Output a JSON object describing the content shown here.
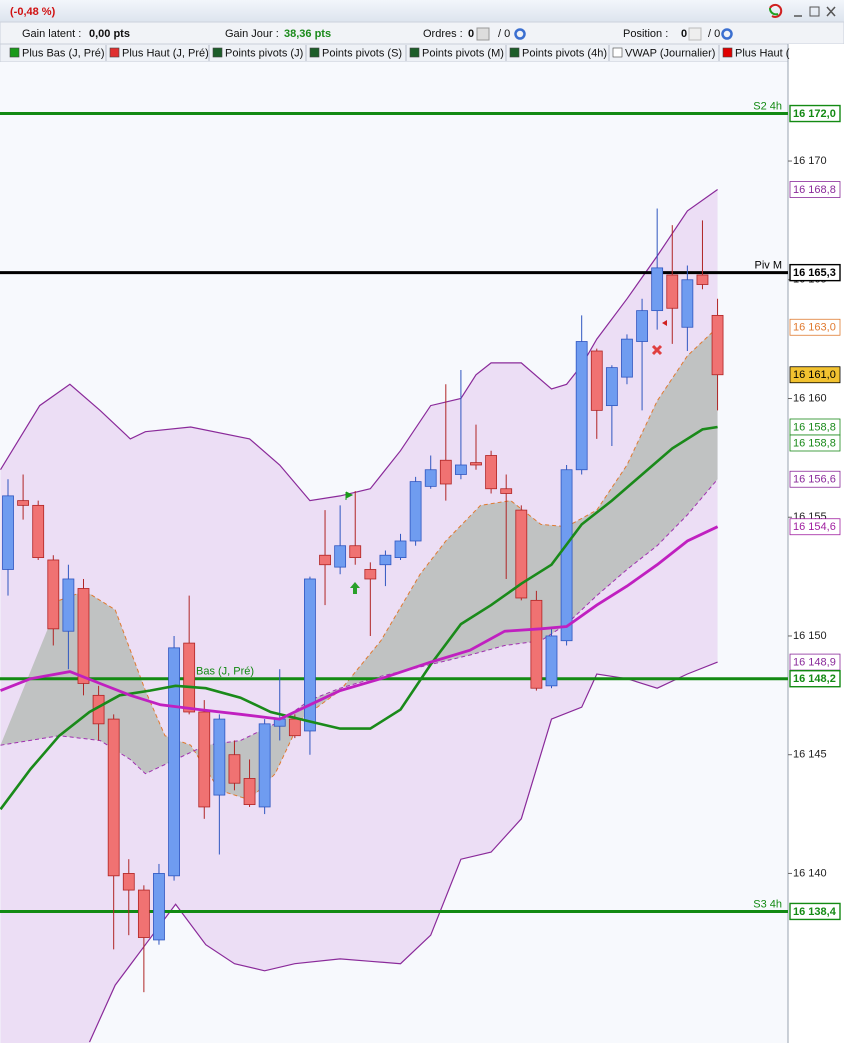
{
  "header": {
    "change": "(-0,48 %)"
  },
  "stats": {
    "gain_latent_label": "Gain latent :",
    "gain_latent": "0,00 pts",
    "gain_jour_label": "Gain Jour :",
    "gain_jour": "38,36 pts",
    "ordres_label": "Ordres :",
    "ordres": "0",
    "ordres_total": "/ 0",
    "position_label": "Position :",
    "position": "0",
    "position_total": "/ 0"
  },
  "indicators": [
    {
      "name": "Plus Bas (J, Pré)",
      "color": "#1a9a1a"
    },
    {
      "name": "Plus Haut (J, Pré)",
      "color": "#e03030"
    },
    {
      "name": "Points pivots (J)",
      "color": "#1d5e2a"
    },
    {
      "name": "Points pivots (S)",
      "color": "#1d5e2a"
    },
    {
      "name": "Points pivots (M)",
      "color": "#1d5e2a"
    },
    {
      "name": "Points pivots (4h)",
      "color": "#1d5e2a"
    },
    {
      "name": "VWAP (Journalier)",
      "color": "#ffffff"
    },
    {
      "name": "Plus Haut (",
      "color": "#e00000"
    }
  ],
  "chart_data": {
    "type": "candlestick",
    "xlim": [
      -0.53,
      51.6
    ],
    "ylim": [
      16132.86,
      16174.17
    ],
    "yticks": [
      {
        "value": 16140,
        "label": "16 140"
      },
      {
        "value": 16145,
        "label": "16 145"
      },
      {
        "value": 16150,
        "label": "16 150"
      },
      {
        "value": 16155,
        "label": "16 155"
      },
      {
        "value": 16160,
        "label": "16 160"
      },
      {
        "value": 16165,
        "label": "16 165"
      },
      {
        "value": 16170,
        "label": "16 170"
      }
    ],
    "up_color": "#6f9cf0",
    "down_color": "#f07272",
    "open": [
      16152.8,
      16155.7,
      16155.5,
      16153.2,
      16150.2,
      16152.0,
      16147.5,
      16146.5,
      16140.0,
      16139.3,
      16137.2,
      16139.9,
      16149.7,
      16146.8,
      16143.3,
      16145.0,
      16144.0,
      16142.8,
      16146.2,
      16146.5,
      16146.0,
      16153.4,
      16152.9,
      16153.8,
      16152.8,
      16153.0,
      16153.3,
      16154.0,
      16156.3,
      16157.4,
      16156.8,
      16157.3,
      16157.6,
      16156.2,
      16155.3,
      16151.5,
      16147.9,
      16149.8,
      16157.0,
      16162.0,
      16159.7,
      16160.9,
      16162.4,
      16163.7,
      16165.2,
      16163.0,
      16165.2,
      16163.5
    ],
    "high": [
      16156.6,
      16156.8,
      16155.7,
      16153.4,
      16153.0,
      16152.4,
      16147.9,
      16146.7,
      16140.6,
      16139.5,
      16140.4,
      16150.0,
      16151.7,
      16147.3,
      16146.7,
      16145.6,
      16144.8,
      16146.5,
      16148.6,
      16146.7,
      16152.5,
      16155.3,
      16155.5,
      16156.1,
      16153.1,
      16153.6,
      16154.3,
      16156.7,
      16157.6,
      16160.6,
      16161.2,
      16158.9,
      16157.8,
      16156.8,
      16155.5,
      16151.9,
      16150.3,
      16157.2,
      16163.5,
      16162.1,
      16161.4,
      16162.7,
      16164.2,
      16168.0,
      16167.3,
      16165.6,
      16167.5,
      16164.2
    ],
    "low": [
      16151.7,
      16154.9,
      16153.2,
      16149.6,
      16148.6,
      16147.5,
      16145.6,
      16136.8,
      16137.4,
      16135.0,
      16137.0,
      16139.7,
      16146.7,
      16142.3,
      16140.8,
      16143.5,
      16142.8,
      16142.5,
      16145.6,
      16145.7,
      16145.0,
      16151.3,
      16152.6,
      16153.0,
      16150.0,
      16152.1,
      16153.2,
      16153.8,
      16156.2,
      16155.7,
      16156.6,
      16157.0,
      16156.0,
      16152.4,
      16151.5,
      16147.7,
      16147.8,
      16149.6,
      16156.8,
      16158.3,
      16158.0,
      16160.6,
      16159.5,
      16162.9,
      16162.3,
      16162.0,
      16164.6,
      16159.5
    ],
    "close": [
      16155.9,
      16155.5,
      16153.3,
      16150.3,
      16152.4,
      16148.0,
      16146.3,
      16139.9,
      16139.3,
      16137.3,
      16140.0,
      16149.5,
      16146.8,
      16142.8,
      16146.5,
      16143.8,
      16142.9,
      16146.3,
      16146.5,
      16145.8,
      16152.4,
      16153.0,
      16153.8,
      16153.3,
      16152.4,
      16153.4,
      16154.0,
      16156.5,
      16157.0,
      16156.4,
      16157.2,
      16157.2,
      16156.2,
      16156.0,
      16151.6,
      16147.8,
      16150.0,
      16157.0,
      16162.4,
      16159.5,
      16161.3,
      16162.5,
      16163.7,
      16165.5,
      16163.8,
      16165.0,
      16164.8,
      16161.0
    ],
    "lines": [
      {
        "color": "#8a2a9a",
        "width": 1.2,
        "fill": "#ead9f3",
        "x": [
          -0.5,
          2.1,
          4.1,
          6.1,
          8.1,
          9.1,
          12.1,
          16,
          18,
          20,
          22,
          24,
          26,
          28,
          30,
          31,
          32,
          34,
          36,
          37,
          38,
          39,
          41,
          43,
          45,
          47
        ],
        "values": [
          16157.0,
          16159.7,
          16160.6,
          16159.5,
          16158.3,
          16158.6,
          16158.8,
          16158.3,
          16157.2,
          16155.7,
          16155.9,
          16156.2,
          16157.8,
          16159.7,
          16160.0,
          16161.0,
          16161.5,
          16161.5,
          16160.4,
          16160.6,
          16161.4,
          16162.5,
          16164.2,
          16166.0,
          16167.9,
          16168.8
        ]
      },
      {
        "color": "#8a2a9a",
        "width": 1.2,
        "x": [
          5.4,
          7.1,
          9.1,
          11.1,
          13.1,
          15,
          17,
          19,
          22,
          24,
          26,
          28,
          30,
          32,
          34,
          36,
          38,
          39,
          41,
          43,
          45,
          47
        ],
        "values": [
          16132.9,
          16135.3,
          16137.0,
          16138.7,
          16137.0,
          16136.2,
          16135.9,
          16136.2,
          16136.4,
          16136.3,
          16136.2,
          16137.4,
          16140.6,
          16140.9,
          16142.3,
          16146.5,
          16147.0,
          16148.4,
          16148.2,
          16147.8,
          16148.4,
          16148.9
        ]
      },
      {
        "color": "#e07a30",
        "width": 1,
        "dash": true,
        "fill": "#b9bdb9",
        "x": [
          3.4,
          5.1,
          7.1,
          8.1,
          9.1,
          10.4,
          12.1,
          14,
          16,
          17.7,
          19.4,
          22,
          24.7,
          27.3,
          29,
          31.3,
          33.3,
          35.3,
          37,
          39,
          41,
          43,
          45,
          47
        ],
        "values": [
          16151.5,
          16151.9,
          16151.1,
          16149.4,
          16147.7,
          16145.8,
          16145.4,
          16143.5,
          16143.1,
          16144.2,
          16146.5,
          16147.7,
          16149.8,
          16152.6,
          16154.0,
          16155.5,
          16155.7,
          16154.7,
          16154.6,
          16155.3,
          16157.2,
          16159.9,
          16161.8,
          16163.0
        ]
      },
      {
        "color": "#a030b0",
        "width": 1,
        "dash": true,
        "x": [
          -0.5,
          3.4,
          6.1,
          8.1,
          9.1,
          11.1,
          13.1,
          15.4,
          18,
          20,
          22,
          24.7,
          28,
          30.6,
          32.9,
          35.3,
          37,
          39,
          41,
          43,
          45,
          47
        ],
        "values": [
          16145.4,
          16145.8,
          16145.6,
          16144.8,
          16144.2,
          16144.8,
          16145.4,
          16145.6,
          16146.4,
          16147.3,
          16147.8,
          16148.3,
          16148.8,
          16149.2,
          16149.6,
          16149.8,
          16150.5,
          16151.7,
          16152.8,
          16153.8,
          16155.1,
          16156.6
        ]
      },
      {
        "color": "#1a8a1a",
        "width": 2.6,
        "x": [
          -0.5,
          1.5,
          3.4,
          5.4,
          7.4,
          9.4,
          11.1,
          13.1,
          15.4,
          17.4,
          20,
          22,
          24,
          26,
          28,
          30,
          32,
          34,
          36,
          38,
          40,
          42,
          44,
          46,
          47
        ],
        "values": [
          16142.7,
          16144.4,
          16145.8,
          16146.8,
          16147.5,
          16147.7,
          16147.9,
          16147.8,
          16147.4,
          16146.8,
          16146.4,
          16146.1,
          16146.1,
          16146.9,
          16148.8,
          16150.5,
          16151.3,
          16152.2,
          16153.0,
          16154.7,
          16155.7,
          16156.8,
          16157.9,
          16158.7,
          16158.8
        ]
      },
      {
        "color": "#c020c0",
        "width": 2.8,
        "x": [
          -0.5,
          1.5,
          4.1,
          6.1,
          8.1,
          10.1,
          12.7,
          15.4,
          18,
          20,
          22,
          24.7,
          28,
          30.6,
          32.9,
          35.3,
          37,
          39,
          41,
          43,
          45,
          47
        ],
        "values": [
          16147.7,
          16148.2,
          16148.5,
          16148.0,
          16147.5,
          16147.1,
          16146.9,
          16146.7,
          16146.5,
          16147.1,
          16147.7,
          16148.2,
          16148.9,
          16149.4,
          16150.2,
          16150.3,
          16150.4,
          16151.3,
          16152.1,
          16153.0,
          16154.0,
          16154.6
        ]
      }
    ],
    "levels": [
      {
        "name": "S2 4h",
        "value": 16172.0,
        "label": "16 172,0",
        "color": "#138a13"
      },
      {
        "name": "Piv M",
        "value": 16165.3,
        "label": "16 165,3",
        "color": "#000000"
      },
      {
        "name": "Bas (J, Pré)",
        "value": 16148.2,
        "label": "16 148,2",
        "color": "#138a13"
      },
      {
        "name": "S3 4h",
        "value": 16138.4,
        "label": "16 138,4",
        "color": "#138a13"
      }
    ],
    "price_labels": [
      {
        "value": 16168.8,
        "label": "16 168,8",
        "color": "#8a2a9a"
      },
      {
        "value": 16163.0,
        "label": "16 163,0",
        "color": "#e07a30"
      },
      {
        "value": 16161.0,
        "label": "16 161,0",
        "color": "#000000",
        "background": "#f2c230"
      },
      {
        "value": 16158.8,
        "label": "16 158,8",
        "color": "#1a8a1a"
      },
      {
        "value": 16158.8,
        "label": "16 158,8",
        "color": "#1a8a1a"
      },
      {
        "value": 16156.6,
        "label": "16 156,6",
        "color": "#8a2a9a"
      },
      {
        "value": 16154.6,
        "label": "16 154,6",
        "color": "#a020a0"
      },
      {
        "value": 16148.9,
        "label": "16 148,9",
        "color": "#8a2a9a"
      }
    ]
  }
}
